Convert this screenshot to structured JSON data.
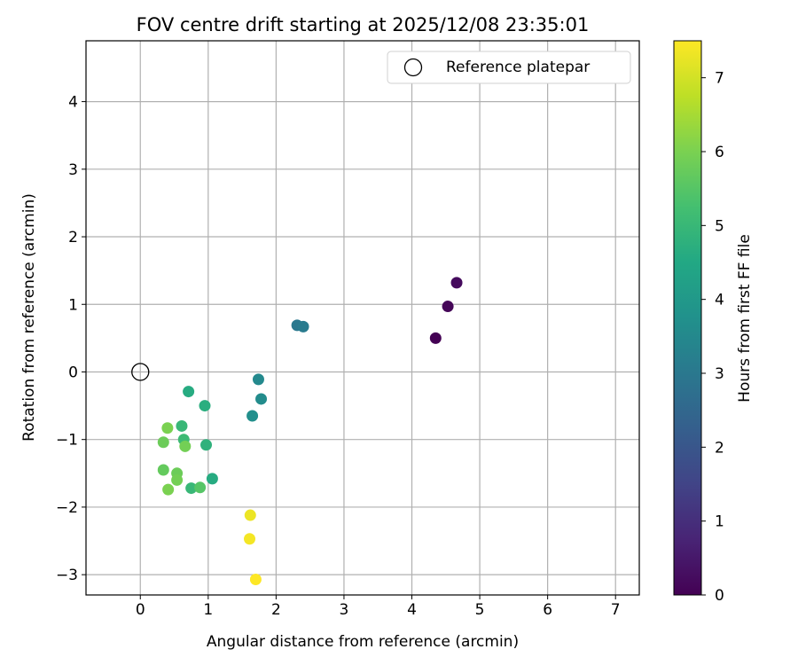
{
  "chart_data": {
    "type": "scatter",
    "title": "FOV centre drift starting at 2025/12/08 23:35:01",
    "xlabel": "Angular distance from reference (arcmin)",
    "ylabel": "Rotation from reference (arcmin)",
    "xlim": [
      -0.8,
      7.35
    ],
    "ylim": [
      -3.3,
      4.9
    ],
    "xticks": [
      0,
      1,
      2,
      3,
      4,
      5,
      6,
      7
    ],
    "yticks": [
      -3,
      -2,
      -1,
      0,
      1,
      2,
      3,
      4
    ],
    "grid": true,
    "legend": {
      "position": "top-right",
      "entries": [
        "Reference platepar"
      ]
    },
    "reference_point": {
      "name": "Reference platepar",
      "x": 0,
      "y": 0
    },
    "colorbar": {
      "label": "Hours from first FF file",
      "range": [
        0,
        7.5
      ],
      "ticks": [
        0,
        1,
        2,
        3,
        4,
        5,
        6,
        7
      ],
      "colormap": "viridis"
    },
    "points": [
      {
        "x": 4.35,
        "y": 0.5,
        "hours": 0.0
      },
      {
        "x": 4.53,
        "y": 0.97,
        "hours": 0.1
      },
      {
        "x": 4.66,
        "y": 1.32,
        "hours": 0.2
      },
      {
        "x": 2.31,
        "y": 0.69,
        "hours": 3.0
      },
      {
        "x": 2.4,
        "y": 0.67,
        "hours": 3.1
      },
      {
        "x": 1.74,
        "y": -0.11,
        "hours": 3.5
      },
      {
        "x": 1.78,
        "y": -0.4,
        "hours": 3.6
      },
      {
        "x": 1.65,
        "y": -0.65,
        "hours": 3.7
      },
      {
        "x": 0.71,
        "y": -0.29,
        "hours": 4.6
      },
      {
        "x": 0.95,
        "y": -0.5,
        "hours": 4.7
      },
      {
        "x": 0.97,
        "y": -1.08,
        "hours": 4.8
      },
      {
        "x": 1.06,
        "y": -1.58,
        "hours": 4.6
      },
      {
        "x": 0.61,
        "y": -0.8,
        "hours": 5.0
      },
      {
        "x": 0.64,
        "y": -1.0,
        "hours": 5.1
      },
      {
        "x": 0.75,
        "y": -1.72,
        "hours": 5.0
      },
      {
        "x": 0.88,
        "y": -1.71,
        "hours": 5.5
      },
      {
        "x": 0.66,
        "y": -1.1,
        "hours": 5.9
      },
      {
        "x": 0.4,
        "y": -0.83,
        "hours": 6.0
      },
      {
        "x": 0.34,
        "y": -1.04,
        "hours": 5.8
      },
      {
        "x": 0.34,
        "y": -1.45,
        "hours": 5.7
      },
      {
        "x": 0.54,
        "y": -1.5,
        "hours": 5.8
      },
      {
        "x": 0.54,
        "y": -1.6,
        "hours": 5.9
      },
      {
        "x": 0.41,
        "y": -1.74,
        "hours": 6.0
      },
      {
        "x": 1.62,
        "y": -2.12,
        "hours": 7.3
      },
      {
        "x": 1.61,
        "y": -2.47,
        "hours": 7.4
      },
      {
        "x": 1.7,
        "y": -3.07,
        "hours": 7.5
      }
    ]
  }
}
